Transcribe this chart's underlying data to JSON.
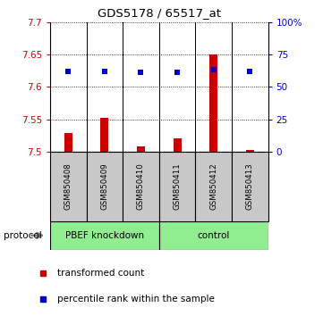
{
  "title": "GDS5178 / 65517_at",
  "samples": [
    "GSM850408",
    "GSM850409",
    "GSM850410",
    "GSM850411",
    "GSM850412",
    "GSM850413"
  ],
  "red_values": [
    7.529,
    7.552,
    7.508,
    7.52,
    7.65,
    7.502
  ],
  "blue_values": [
    62,
    62,
    61,
    61,
    63,
    62
  ],
  "ylim_left": [
    7.5,
    7.7
  ],
  "ylim_right": [
    0,
    100
  ],
  "yticks_left": [
    7.5,
    7.55,
    7.6,
    7.65,
    7.7
  ],
  "ytick_labels_left": [
    "7.5",
    "7.55",
    "7.6",
    "7.65",
    "7.7"
  ],
  "yticks_right": [
    0,
    25,
    50,
    75,
    100
  ],
  "ytick_labels_right": [
    "0",
    "25",
    "50",
    "75",
    "100%"
  ],
  "groups": [
    {
      "label": "PBEF knockdown",
      "n_samples": 3
    },
    {
      "label": "control",
      "n_samples": 3
    }
  ],
  "protocol_label": "protocol",
  "red_color": "#CC0000",
  "blue_color": "#0000CC",
  "bar_bottom": 7.5,
  "legend_red": "transformed count",
  "legend_blue": "percentile rank within the sample",
  "sample_box_color": "#C8C8C8",
  "group_box_color": "#90EE90"
}
